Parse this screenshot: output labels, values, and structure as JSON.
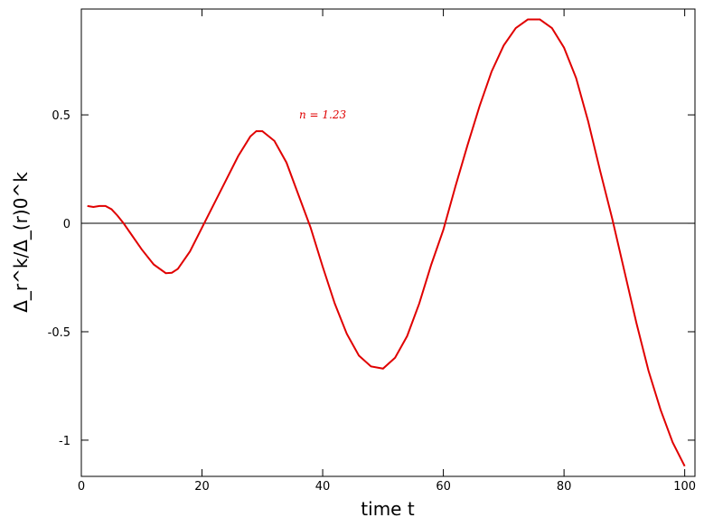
{
  "chart_data": {
    "type": "line",
    "xlabel": "time t",
    "ylabel": "Δ_r^k/Δ_(r)0^k",
    "annotation": {
      "text": "n = 1.23",
      "x": 40,
      "y": 0.5
    },
    "x": [
      1,
      2,
      3,
      4,
      5,
      6,
      7,
      8,
      10,
      12,
      14,
      15,
      16,
      18,
      20,
      22,
      24,
      26,
      28,
      29,
      30,
      32,
      34,
      36,
      38,
      40,
      42,
      44,
      46,
      48,
      50,
      52,
      54,
      56,
      58,
      60,
      62,
      64,
      66,
      68,
      70,
      72,
      74,
      76,
      78,
      80,
      82,
      84,
      86,
      88,
      90,
      92,
      94,
      96,
      98,
      100
    ],
    "series": [
      {
        "name": "n = 1.23",
        "color": "#e00000",
        "values": [
          0.08,
          0.075,
          0.08,
          0.08,
          0.065,
          0.035,
          0.0,
          -0.04,
          -0.12,
          -0.19,
          -0.23,
          -0.228,
          -0.21,
          -0.13,
          -0.02,
          0.09,
          0.2,
          0.31,
          0.4,
          0.425,
          0.425,
          0.38,
          0.28,
          0.13,
          -0.02,
          -0.2,
          -0.37,
          -0.51,
          -0.61,
          -0.66,
          -0.67,
          -0.62,
          -0.52,
          -0.37,
          -0.19,
          -0.03,
          0.17,
          0.36,
          0.54,
          0.7,
          0.82,
          0.9,
          0.94,
          0.94,
          0.9,
          0.81,
          0.67,
          0.47,
          0.24,
          0.02,
          -0.22,
          -0.46,
          -0.68,
          -0.86,
          -1.01,
          -1.12
        ]
      }
    ],
    "xlim": [
      0,
      101.7
    ],
    "ylim": [
      -1.167,
      0.988
    ],
    "xticks": [
      0,
      20,
      40,
      60,
      80,
      100
    ],
    "yticks": [
      -1,
      -0.5,
      0,
      0.5
    ],
    "hlines": [
      0
    ],
    "grid": false
  }
}
